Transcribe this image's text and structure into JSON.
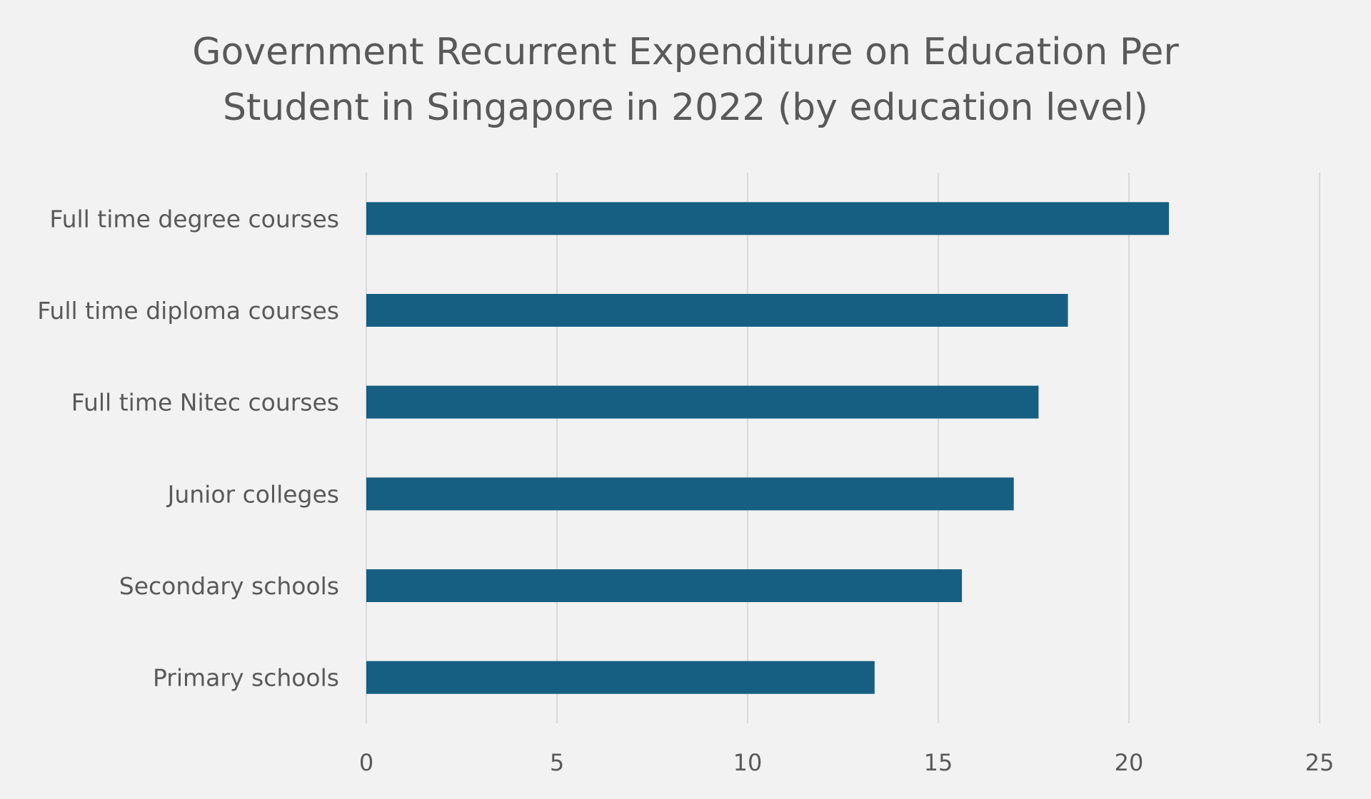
{
  "chart_data": {
    "type": "bar",
    "orientation": "horizontal",
    "title": "Government Recurrent Expenditure on Education Per Student in Singapore in 2022 (by education level)",
    "categories": [
      "Full time degree courses",
      "Full time diploma courses",
      "Full time Nitec courses",
      "Junior colleges",
      "Secondary schools",
      "Primary schools"
    ],
    "values": [
      21.05,
      18.4,
      17.63,
      16.98,
      15.62,
      13.33
    ],
    "xlim": [
      0,
      25
    ],
    "xticks": [
      "0",
      "5",
      "10",
      "15",
      "20",
      "25"
    ],
    "grid": true,
    "bar_color": "#165f82"
  }
}
